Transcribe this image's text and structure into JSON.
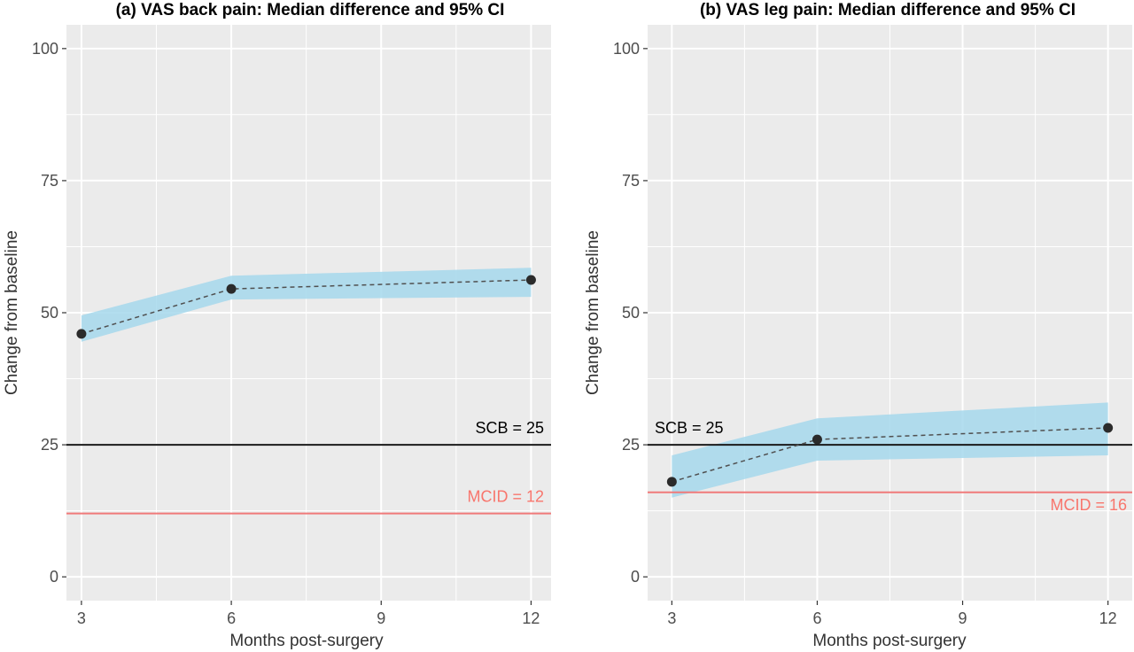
{
  "chart_data": [
    {
      "type": "line",
      "title": "(a) VAS back pain: Median difference and 95% CI",
      "xlabel": "Months post-surgery",
      "ylabel": "Change from baseline",
      "xlim": [
        2.7,
        12.4
      ],
      "ylim": [
        -4.5,
        104.5
      ],
      "xticks": [
        3,
        6,
        9,
        12
      ],
      "xtick_labels": [
        "3",
        "6",
        "9",
        "12"
      ],
      "yticks": [
        0,
        25,
        50,
        75,
        100
      ],
      "ytick_labels": [
        "0",
        "25",
        "50",
        "75",
        "100"
      ],
      "grid": true,
      "series": [
        {
          "x": [
            3,
            6,
            12
          ],
          "y": [
            46,
            54.5,
            56.2
          ],
          "ci_lower": [
            44.5,
            52.5,
            53
          ],
          "ci_upper": [
            49.5,
            57,
            58.5
          ],
          "color": "#2b2b2b",
          "band_color": "#a6d8ec"
        }
      ],
      "reference_lines": [
        {
          "label": "SCB = 25",
          "y": 25,
          "color": "#1a1a1a",
          "label_color": "#000000",
          "label_position": "above-right"
        },
        {
          "label": "MCID = 12",
          "y": 12,
          "color": "#f07a7a",
          "label_color": "#f8766d",
          "label_position": "above-right"
        }
      ]
    },
    {
      "type": "line",
      "title": "(b) VAS leg pain: Median difference and 95% CI",
      "xlabel": "Months post-surgery",
      "ylabel": "Change from baseline",
      "xlim": [
        2.5,
        12.5
      ],
      "ylim": [
        -4.5,
        104.5
      ],
      "xticks": [
        3,
        6,
        9,
        12
      ],
      "xtick_labels": [
        "3",
        "6",
        "9",
        "12"
      ],
      "yticks": [
        0,
        25,
        50,
        75,
        100
      ],
      "ytick_labels": [
        "0",
        "25",
        "50",
        "75",
        "100"
      ],
      "grid": true,
      "series": [
        {
          "x": [
            3,
            6,
            12
          ],
          "y": [
            18,
            26,
            28.2
          ],
          "ci_lower": [
            15,
            22,
            23
          ],
          "ci_upper": [
            23,
            30,
            33
          ],
          "color": "#2b2b2b",
          "band_color": "#a6d8ec"
        }
      ],
      "reference_lines": [
        {
          "label": "SCB = 25",
          "y": 25,
          "color": "#1a1a1a",
          "label_color": "#000000",
          "label_position": "above-left"
        },
        {
          "label": "MCID = 16",
          "y": 16,
          "color": "#f07a7a",
          "label_color": "#f8766d",
          "label_position": "below-right"
        }
      ]
    }
  ]
}
